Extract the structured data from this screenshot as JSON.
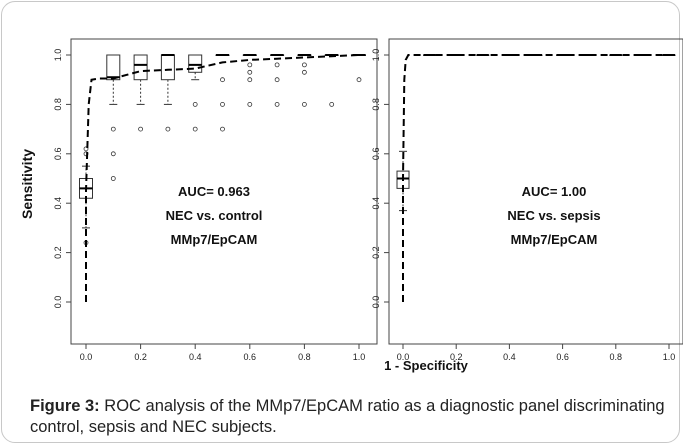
{
  "figure": {
    "ylabel": "Sensitivity",
    "xlabel": "1 - Specificity",
    "caption_label": "Figure 3:",
    "caption_text": "ROC analysis of the MMp7/EpCAM ratio as a diagnostic panel discriminating control, sepsis and NEC subjects."
  },
  "chart_data": [
    {
      "type": "line",
      "panel": "left",
      "xlim": [
        0,
        1
      ],
      "ylim": [
        0,
        1
      ],
      "xticks": [
        "0.0",
        "0.2",
        "0.4",
        "0.6",
        "0.8",
        "1.0"
      ],
      "yticks": [
        "0.0",
        "0.2",
        "0.4",
        "0.6",
        "0.8",
        "1.0"
      ],
      "annotations": [
        "AUC= 0.963",
        "NEC vs. control",
        "MMp7/EpCAM"
      ],
      "roc_curve": {
        "x": [
          0,
          0,
          0.01,
          0.02,
          0.05,
          0.1,
          0.2,
          0.3,
          0.4,
          0.5,
          0.6,
          0.7,
          0.8,
          0.9,
          1.0
        ],
        "y": [
          0,
          0.45,
          0.8,
          0.9,
          0.905,
          0.905,
          0.935,
          0.94,
          0.945,
          0.97,
          0.98,
          0.985,
          0.99,
          0.995,
          1.0
        ]
      },
      "boxes": [
        {
          "x": 0.0,
          "q1": 0.42,
          "median": 0.46,
          "q3": 0.5,
          "whisker_low": 0.3,
          "whisker_high": 0.55,
          "outliers": [
            0.24,
            0.6,
            0.62
          ]
        },
        {
          "x": 0.1,
          "q1": 0.9,
          "median": 0.91,
          "q3": 1.0,
          "whisker_low": 0.8,
          "whisker_high": 1.0,
          "outliers": [
            0.5,
            0.6,
            0.7
          ]
        },
        {
          "x": 0.2,
          "q1": 0.9,
          "median": 0.96,
          "q3": 1.0,
          "whisker_low": 0.8,
          "whisker_high": 1.0,
          "outliers": [
            0.7
          ]
        },
        {
          "x": 0.3,
          "q1": 0.9,
          "median": 1.0,
          "q3": 1.0,
          "whisker_low": 0.8,
          "whisker_high": 1.0,
          "outliers": [
            0.7
          ]
        },
        {
          "x": 0.4,
          "q1": 0.93,
          "median": 0.96,
          "q3": 1.0,
          "whisker_low": 0.9,
          "whisker_high": 1.0,
          "outliers": [
            0.7,
            0.8
          ]
        },
        {
          "x": 0.5,
          "q1": 1.0,
          "median": 1.0,
          "q3": 1.0,
          "whisker_low": 1.0,
          "whisker_high": 1.0,
          "outliers": [
            0.7,
            0.8,
            0.9
          ]
        },
        {
          "x": 0.6,
          "q1": 1.0,
          "median": 1.0,
          "q3": 1.0,
          "whisker_low": 1.0,
          "whisker_high": 1.0,
          "outliers": [
            0.8,
            0.9,
            0.93,
            0.96
          ]
        },
        {
          "x": 0.7,
          "q1": 1.0,
          "median": 1.0,
          "q3": 1.0,
          "whisker_low": 1.0,
          "whisker_high": 1.0,
          "outliers": [
            0.8,
            0.9,
            0.96
          ]
        },
        {
          "x": 0.8,
          "q1": 1.0,
          "median": 1.0,
          "q3": 1.0,
          "whisker_low": 1.0,
          "whisker_high": 1.0,
          "outliers": [
            0.8,
            0.93,
            0.96
          ]
        },
        {
          "x": 0.9,
          "q1": 1.0,
          "median": 1.0,
          "q3": 1.0,
          "whisker_low": 1.0,
          "whisker_high": 1.0,
          "outliers": [
            0.8
          ]
        },
        {
          "x": 1.0,
          "q1": 1.0,
          "median": 1.0,
          "q3": 1.0,
          "whisker_low": 1.0,
          "whisker_high": 1.0,
          "outliers": [
            0.9
          ]
        }
      ]
    },
    {
      "type": "line",
      "panel": "right",
      "xlim": [
        0,
        1
      ],
      "ylim": [
        0,
        1
      ],
      "xticks": [
        "0.0",
        "0.2",
        "0.4",
        "0.6",
        "0.8",
        "1.0"
      ],
      "yticks": [
        "0.0",
        "0.2",
        "0.4",
        "0.6",
        "0.8",
        "1.0"
      ],
      "annotations": [
        "AUC= 1.00",
        "NEC vs. sepsis",
        "MMp7/EpCAM"
      ],
      "roc_curve": {
        "x": [
          0,
          0,
          0.005,
          0.01,
          0.02,
          1.0
        ],
        "y": [
          0,
          0.5,
          0.9,
          0.98,
          1.0,
          1.0
        ]
      },
      "boxes": [
        {
          "x": 0.0,
          "q1": 0.46,
          "median": 0.5,
          "q3": 0.53,
          "whisker_low": 0.37,
          "whisker_high": 0.61,
          "outliers": []
        },
        {
          "x": 0.1,
          "q1": 1.0,
          "median": 1.0,
          "q3": 1.0,
          "whisker_low": 1.0,
          "whisker_high": 1.0,
          "outliers": []
        },
        {
          "x": 0.2,
          "q1": 1.0,
          "median": 1.0,
          "q3": 1.0,
          "whisker_low": 1.0,
          "whisker_high": 1.0,
          "outliers": []
        },
        {
          "x": 0.3,
          "q1": 1.0,
          "median": 1.0,
          "q3": 1.0,
          "whisker_low": 1.0,
          "whisker_high": 1.0,
          "outliers": []
        },
        {
          "x": 0.4,
          "q1": 1.0,
          "median": 1.0,
          "q3": 1.0,
          "whisker_low": 1.0,
          "whisker_high": 1.0,
          "outliers": []
        },
        {
          "x": 0.5,
          "q1": 1.0,
          "median": 1.0,
          "q3": 1.0,
          "whisker_low": 1.0,
          "whisker_high": 1.0,
          "outliers": []
        },
        {
          "x": 0.6,
          "q1": 1.0,
          "median": 1.0,
          "q3": 1.0,
          "whisker_low": 1.0,
          "whisker_high": 1.0,
          "outliers": []
        },
        {
          "x": 0.7,
          "q1": 1.0,
          "median": 1.0,
          "q3": 1.0,
          "whisker_low": 1.0,
          "whisker_high": 1.0,
          "outliers": []
        },
        {
          "x": 0.8,
          "q1": 1.0,
          "median": 1.0,
          "q3": 1.0,
          "whisker_low": 1.0,
          "whisker_high": 1.0,
          "outliers": []
        },
        {
          "x": 0.9,
          "q1": 1.0,
          "median": 1.0,
          "q3": 1.0,
          "whisker_low": 1.0,
          "whisker_high": 1.0,
          "outliers": []
        },
        {
          "x": 1.0,
          "q1": 1.0,
          "median": 1.0,
          "q3": 1.0,
          "whisker_low": 1.0,
          "whisker_high": 1.0,
          "outliers": []
        }
      ]
    }
  ]
}
